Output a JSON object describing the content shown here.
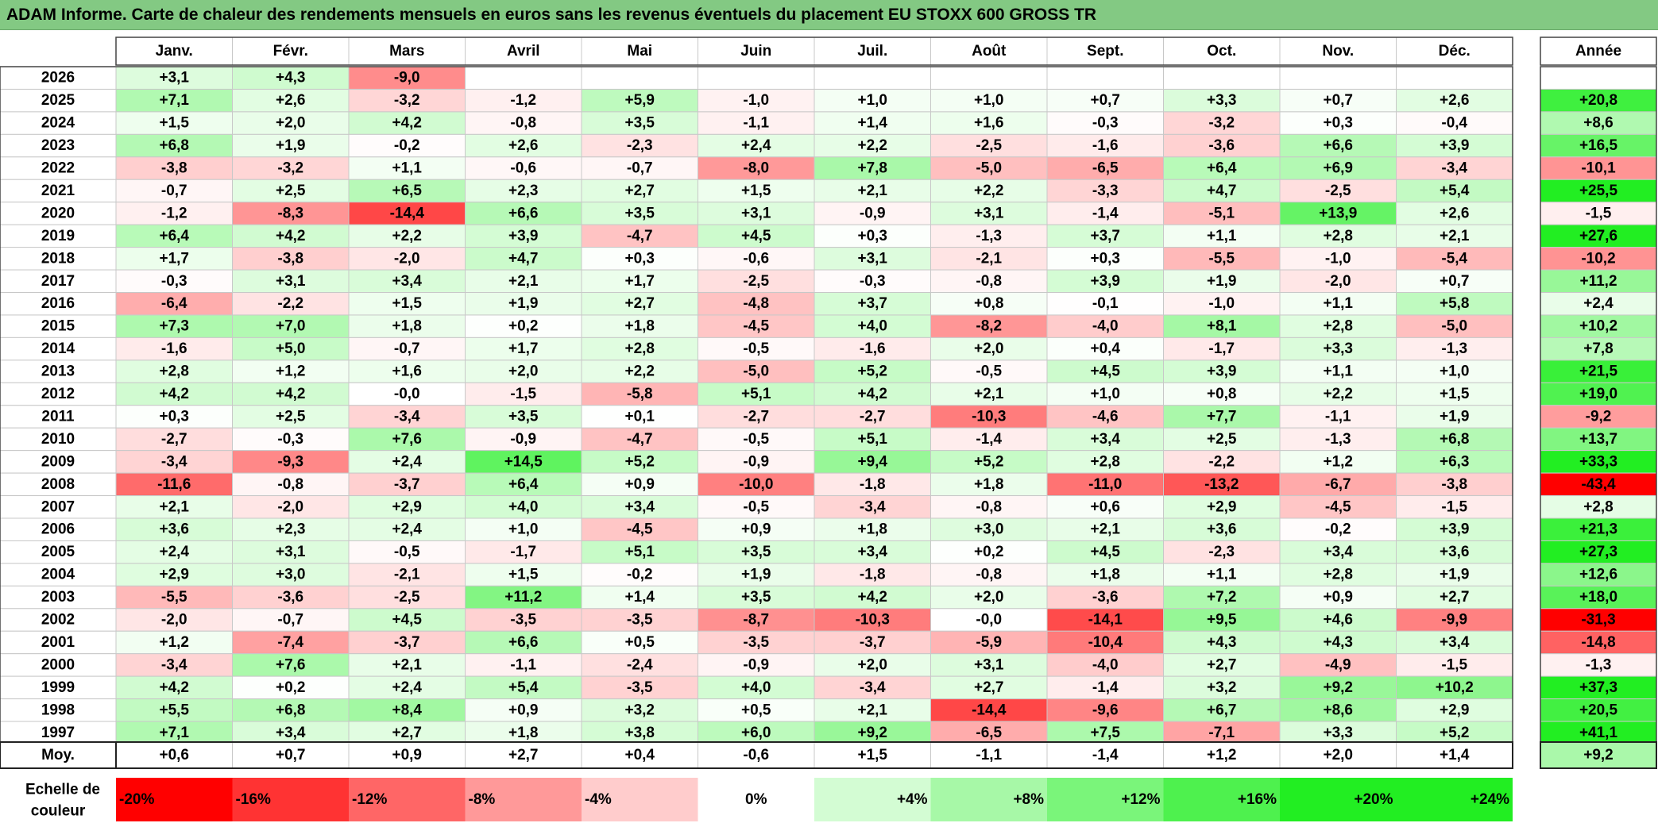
{
  "title": "ADAM Informe. Carte de chaleur des rendements mensuels en euros sans les revenus éventuels du placement EU STOXX 600 GROSS TR",
  "chart_data": {
    "type": "heatmap",
    "months": [
      "Janv.",
      "Févr.",
      "Mars",
      "Avril",
      "Mai",
      "Juin",
      "Juil.",
      "Août",
      "Sept.",
      "Oct.",
      "Nov.",
      "Déc."
    ],
    "year_header": "Année",
    "rows": [
      {
        "year": "2026",
        "values": [
          "+3,1",
          "+4,3",
          "-9,0",
          "",
          "",
          "",
          "",
          "",
          "",
          "",
          "",
          ""
        ],
        "annual": ""
      },
      {
        "year": "2025",
        "values": [
          "+7,1",
          "+2,6",
          "-3,2",
          "-1,2",
          "+5,9",
          "-1,0",
          "+1,0",
          "+1,0",
          "+0,7",
          "+3,3",
          "+0,7",
          "+2,6"
        ],
        "annual": "+20,8"
      },
      {
        "year": "2024",
        "values": [
          "+1,5",
          "+2,0",
          "+4,2",
          "-0,8",
          "+3,5",
          "-1,1",
          "+1,4",
          "+1,6",
          "-0,3",
          "-3,2",
          "+0,3",
          "-0,4"
        ],
        "annual": "+8,6"
      },
      {
        "year": "2023",
        "values": [
          "+6,8",
          "+1,9",
          "-0,2",
          "+2,6",
          "-2,3",
          "+2,4",
          "+2,2",
          "-2,5",
          "-1,6",
          "-3,6",
          "+6,6",
          "+3,9"
        ],
        "annual": "+16,5"
      },
      {
        "year": "2022",
        "values": [
          "-3,8",
          "-3,2",
          "+1,1",
          "-0,6",
          "-0,7",
          "-8,0",
          "+7,8",
          "-5,0",
          "-6,5",
          "+6,4",
          "+6,9",
          "-3,4"
        ],
        "annual": "-10,1"
      },
      {
        "year": "2021",
        "values": [
          "-0,7",
          "+2,5",
          "+6,5",
          "+2,3",
          "+2,7",
          "+1,5",
          "+2,1",
          "+2,2",
          "-3,3",
          "+4,7",
          "-2,5",
          "+5,4"
        ],
        "annual": "+25,5"
      },
      {
        "year": "2020",
        "values": [
          "-1,2",
          "-8,3",
          "-14,4",
          "+6,6",
          "+3,5",
          "+3,1",
          "-0,9",
          "+3,1",
          "-1,4",
          "-5,1",
          "+13,9",
          "+2,6"
        ],
        "annual": "-1,5"
      },
      {
        "year": "2019",
        "values": [
          "+6,4",
          "+4,2",
          "+2,2",
          "+3,9",
          "-4,7",
          "+4,5",
          "+0,3",
          "-1,3",
          "+3,7",
          "+1,1",
          "+2,8",
          "+2,1"
        ],
        "annual": "+27,6"
      },
      {
        "year": "2018",
        "values": [
          "+1,7",
          "-3,8",
          "-2,0",
          "+4,7",
          "+0,3",
          "-0,6",
          "+3,1",
          "-2,1",
          "+0,3",
          "-5,5",
          "-1,0",
          "-5,4"
        ],
        "annual": "-10,2"
      },
      {
        "year": "2017",
        "values": [
          "-0,3",
          "+3,1",
          "+3,4",
          "+2,1",
          "+1,7",
          "-2,5",
          "-0,3",
          "-0,8",
          "+3,9",
          "+1,9",
          "-2,0",
          "+0,7"
        ],
        "annual": "+11,2"
      },
      {
        "year": "2016",
        "values": [
          "-6,4",
          "-2,2",
          "+1,5",
          "+1,9",
          "+2,7",
          "-4,8",
          "+3,7",
          "+0,8",
          "-0,1",
          "-1,0",
          "+1,1",
          "+5,8"
        ],
        "annual": "+2,4"
      },
      {
        "year": "2015",
        "values": [
          "+7,3",
          "+7,0",
          "+1,8",
          "+0,2",
          "+1,8",
          "-4,5",
          "+4,0",
          "-8,2",
          "-4,0",
          "+8,1",
          "+2,8",
          "-5,0"
        ],
        "annual": "+10,2"
      },
      {
        "year": "2014",
        "values": [
          "-1,6",
          "+5,0",
          "-0,7",
          "+1,7",
          "+2,8",
          "-0,5",
          "-1,6",
          "+2,0",
          "+0,4",
          "-1,7",
          "+3,3",
          "-1,3"
        ],
        "annual": "+7,8"
      },
      {
        "year": "2013",
        "values": [
          "+2,8",
          "+1,2",
          "+1,6",
          "+2,0",
          "+2,2",
          "-5,0",
          "+5,2",
          "-0,5",
          "+4,5",
          "+3,9",
          "+1,1",
          "+1,0"
        ],
        "annual": "+21,5"
      },
      {
        "year": "2012",
        "values": [
          "+4,2",
          "+4,2",
          "-0,0",
          "-1,5",
          "-5,8",
          "+5,1",
          "+4,2",
          "+2,1",
          "+1,0",
          "+0,8",
          "+2,2",
          "+1,5"
        ],
        "annual": "+19,0"
      },
      {
        "year": "2011",
        "values": [
          "+0,3",
          "+2,5",
          "-3,4",
          "+3,5",
          "+0,1",
          "-2,7",
          "-2,7",
          "-10,3",
          "-4,6",
          "+7,7",
          "-1,1",
          "+1,9"
        ],
        "annual": "-9,2"
      },
      {
        "year": "2010",
        "values": [
          "-2,7",
          "-0,3",
          "+7,6",
          "-0,9",
          "-4,7",
          "-0,5",
          "+5,1",
          "-1,4",
          "+3,4",
          "+2,5",
          "-1,3",
          "+6,8"
        ],
        "annual": "+13,7"
      },
      {
        "year": "2009",
        "values": [
          "-3,4",
          "-9,3",
          "+2,4",
          "+14,5",
          "+5,2",
          "-0,9",
          "+9,4",
          "+5,2",
          "+2,8",
          "-2,2",
          "+1,2",
          "+6,3"
        ],
        "annual": "+33,3"
      },
      {
        "year": "2008",
        "values": [
          "-11,6",
          "-0,8",
          "-3,7",
          "+6,4",
          "+0,9",
          "-10,0",
          "-1,8",
          "+1,8",
          "-11,0",
          "-13,2",
          "-6,7",
          "-3,8"
        ],
        "annual": "-43,4"
      },
      {
        "year": "2007",
        "values": [
          "+2,1",
          "-2,0",
          "+2,9",
          "+4,0",
          "+3,4",
          "-0,5",
          "-3,4",
          "-0,8",
          "+0,6",
          "+2,9",
          "-4,5",
          "-1,5"
        ],
        "annual": "+2,8"
      },
      {
        "year": "2006",
        "values": [
          "+3,6",
          "+2,3",
          "+2,4",
          "+1,0",
          "-4,5",
          "+0,9",
          "+1,8",
          "+3,0",
          "+2,1",
          "+3,6",
          "-0,2",
          "+3,9"
        ],
        "annual": "+21,3"
      },
      {
        "year": "2005",
        "values": [
          "+2,4",
          "+3,1",
          "-0,5",
          "-1,7",
          "+5,1",
          "+3,5",
          "+3,4",
          "+0,2",
          "+4,5",
          "-2,3",
          "+3,4",
          "+3,6"
        ],
        "annual": "+27,3"
      },
      {
        "year": "2004",
        "values": [
          "+2,9",
          "+3,0",
          "-2,1",
          "+1,5",
          "-0,2",
          "+1,9",
          "-1,8",
          "-0,8",
          "+1,8",
          "+1,1",
          "+2,8",
          "+1,9"
        ],
        "annual": "+12,6"
      },
      {
        "year": "2003",
        "values": [
          "-5,5",
          "-3,6",
          "-2,5",
          "+11,2",
          "+1,4",
          "+3,5",
          "+4,2",
          "+2,0",
          "-3,6",
          "+7,2",
          "+0,9",
          "+2,7"
        ],
        "annual": "+18,0"
      },
      {
        "year": "2002",
        "values": [
          "-2,0",
          "-0,7",
          "+4,5",
          "-3,5",
          "-3,5",
          "-8,7",
          "-10,3",
          "-0,0",
          "-14,1",
          "+9,5",
          "+4,6",
          "-9,9"
        ],
        "annual": "-31,3"
      },
      {
        "year": "2001",
        "values": [
          "+1,2",
          "-7,4",
          "-3,7",
          "+6,6",
          "+0,5",
          "-3,5",
          "-3,7",
          "-5,9",
          "-10,4",
          "+4,3",
          "+4,3",
          "+3,4"
        ],
        "annual": "-14,8"
      },
      {
        "year": "2000",
        "values": [
          "-3,4",
          "+7,6",
          "+2,1",
          "-1,1",
          "-2,4",
          "-0,9",
          "+2,0",
          "+3,1",
          "-4,0",
          "+2,7",
          "-4,9",
          "-1,5"
        ],
        "annual": "-1,3"
      },
      {
        "year": "1999",
        "values": [
          "+4,2",
          "+0,2",
          "+2,4",
          "+5,4",
          "-3,5",
          "+4,0",
          "-3,4",
          "+2,7",
          "-1,4",
          "+3,2",
          "+9,2",
          "+10,2"
        ],
        "annual": "+37,3"
      },
      {
        "year": "1998",
        "values": [
          "+5,5",
          "+6,8",
          "+8,4",
          "+0,9",
          "+3,2",
          "+0,5",
          "+2,1",
          "-14,4",
          "-9,6",
          "+6,7",
          "+8,6",
          "+2,9"
        ],
        "annual": "+20,5"
      },
      {
        "year": "1997",
        "values": [
          "+7,1",
          "+3,4",
          "+2,7",
          "+1,8",
          "+3,8",
          "+6,0",
          "+9,2",
          "-6,5",
          "+7,5",
          "-7,1",
          "+3,3",
          "+5,2"
        ],
        "annual": "+41,1"
      }
    ],
    "average": {
      "label": "Moy.",
      "values": [
        "+0,6",
        "+0,7",
        "+0,9",
        "+2,7",
        "+0,4",
        "-0,6",
        "+1,5",
        "-1,1",
        "-1,4",
        "+1,2",
        "+2,0",
        "+1,4"
      ],
      "annual": "+9,2"
    },
    "scale": {
      "label_line1": "Echelle de",
      "label_line2": "couleur",
      "steps": [
        {
          "label": "-20%",
          "value": -20
        },
        {
          "label": "-16%",
          "value": -16
        },
        {
          "label": "-12%",
          "value": -12
        },
        {
          "label": "-8%",
          "value": -8
        },
        {
          "label": "-4%",
          "value": -4
        },
        {
          "label": "0%",
          "value": 0
        },
        {
          "label": "+4%",
          "value": 4
        },
        {
          "label": "+8%",
          "value": 8
        },
        {
          "label": "+12%",
          "value": 12
        },
        {
          "label": "+16%",
          "value": 16
        },
        {
          "label": "+20%",
          "value": 20
        },
        {
          "label": "+24%",
          "value": 24
        }
      ]
    },
    "colors": {
      "negative_max": "#ff0000",
      "neutral": "#ffffff",
      "positive_max": "#22ee22",
      "title_bg": "#83c983"
    }
  }
}
